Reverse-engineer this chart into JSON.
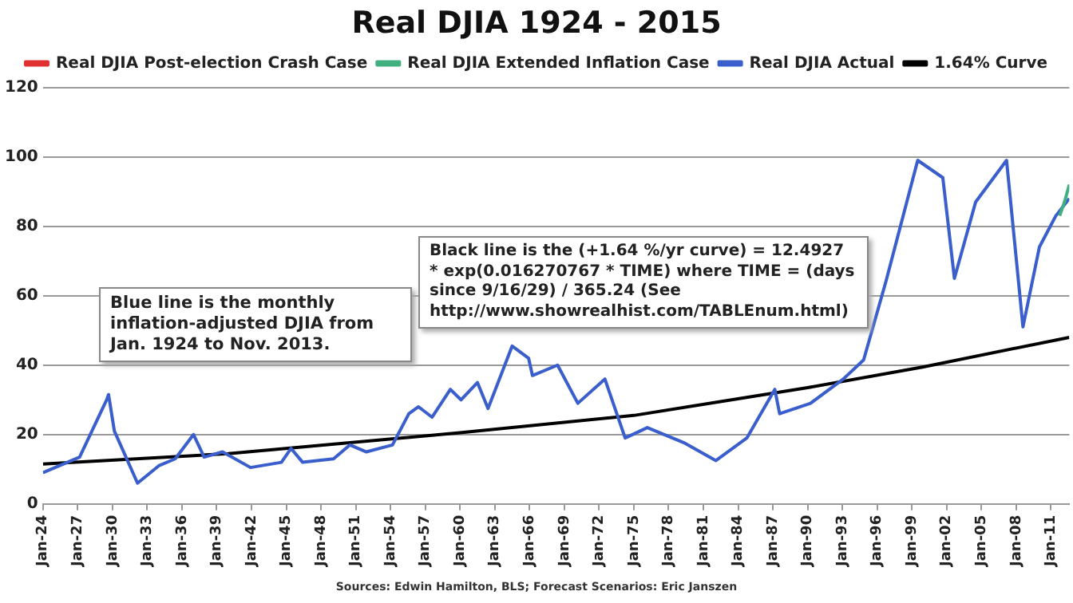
{
  "chart_data": {
    "type": "line",
    "title": "Real DJIA 1924 - 2015",
    "series": [
      {
        "name": "Real DJIA Post-election Crash Case",
        "color": "#e03030"
      },
      {
        "name": "Real DJIA Extended Inflation Case",
        "color": "#40b080",
        "x": [
          "2011-10",
          "2012-03",
          "2012-08"
        ],
        "values": [
          83,
          87,
          92
        ]
      },
      {
        "name": "Real DJIA Actual",
        "color": "#3a5fcd",
        "x": [
          "1924-01",
          "1927-03",
          "1929-07",
          "1929-09",
          "1930-03",
          "1932-03",
          "1934-01",
          "1935-06",
          "1937-01",
          "1937-12",
          "1939-07",
          "1941-12",
          "1944-08",
          "1945-06",
          "1946-06",
          "1949-02",
          "1950-07",
          "1951-12",
          "1954-03",
          "1955-08",
          "1956-06",
          "1957-08",
          "1959-03",
          "1960-02",
          "1961-07",
          "1962-06",
          "1964-07",
          "1965-12",
          "1966-04",
          "1968-06",
          "1970-03",
          "1972-07",
          "1974-04",
          "1976-03",
          "1979-06",
          "1982-02",
          "1984-10",
          "1987-03",
          "1987-08",
          "1990-04",
          "1993-02",
          "1994-11",
          "1996-10",
          "1999-07",
          "2001-09",
          "2002-09",
          "2004-07",
          "2007-03",
          "2008-08",
          "2010-01",
          "2011-06",
          "2012-08"
        ],
        "values": [
          9,
          13.5,
          30,
          31.5,
          21,
          6,
          11,
          13,
          20,
          13.5,
          15,
          10.5,
          12,
          16,
          12,
          13,
          17,
          15,
          17,
          26,
          28,
          25,
          33,
          30,
          35,
          27.5,
          45.5,
          42,
          37,
          40,
          29,
          36,
          19,
          22,
          17.5,
          12.5,
          19,
          33,
          26,
          29,
          36,
          41.5,
          64,
          99,
          94,
          65,
          87,
          99,
          51,
          74,
          83,
          88
        ]
      },
      {
        "name": "1.64% Curve",
        "color": "#000000",
        "x": [
          "1924-01",
          "1940-01",
          "1960-01",
          "1975-01",
          "1990-01",
          "2000-01",
          "2012-08"
        ],
        "values": [
          11.5,
          14.5,
          20.5,
          25.5,
          33.5,
          39.5,
          48
        ]
      }
    ],
    "xlim": [
      "1924-01",
      "2012-08"
    ],
    "xticks": [
      {
        "value": "1924-01",
        "label": "Jan-24"
      },
      {
        "value": "1927-01",
        "label": "Jan-27"
      },
      {
        "value": "1930-01",
        "label": "Jan-30"
      },
      {
        "value": "1933-01",
        "label": "Jan-33"
      },
      {
        "value": "1936-01",
        "label": "Jan-36"
      },
      {
        "value": "1939-01",
        "label": "Jan-39"
      },
      {
        "value": "1942-01",
        "label": "Jan-42"
      },
      {
        "value": "1945-01",
        "label": "Jan-45"
      },
      {
        "value": "1948-01",
        "label": "Jan-48"
      },
      {
        "value": "1951-01",
        "label": "Jan-51"
      },
      {
        "value": "1954-01",
        "label": "Jan-54"
      },
      {
        "value": "1957-01",
        "label": "Jan-57"
      },
      {
        "value": "1960-01",
        "label": "Jan-60"
      },
      {
        "value": "1963-01",
        "label": "Jan-63"
      },
      {
        "value": "1966-01",
        "label": "Jan-66"
      },
      {
        "value": "1969-01",
        "label": "Jan-69"
      },
      {
        "value": "1972-01",
        "label": "Jan-72"
      },
      {
        "value": "1975-01",
        "label": "Jan-75"
      },
      {
        "value": "1978-01",
        "label": "Jan-78"
      },
      {
        "value": "1981-01",
        "label": "Jan-81"
      },
      {
        "value": "1984-01",
        "label": "Jan-84"
      },
      {
        "value": "1987-01",
        "label": "Jan-87"
      },
      {
        "value": "1990-01",
        "label": "Jan-90"
      },
      {
        "value": "1993-01",
        "label": "Jan-93"
      },
      {
        "value": "1996-01",
        "label": "Jan-96"
      },
      {
        "value": "1999-01",
        "label": "Jan-99"
      },
      {
        "value": "2002-01",
        "label": "Jan-02"
      },
      {
        "value": "2005-01",
        "label": "Jan-05"
      },
      {
        "value": "2008-01",
        "label": "Jan-08"
      },
      {
        "value": "2011-01",
        "label": "Jan-11"
      }
    ],
    "ylim": [
      0,
      120
    ],
    "yticks": [
      0,
      20,
      40,
      60,
      80,
      100,
      120
    ],
    "grid": "y",
    "legend": "top",
    "marker": "none",
    "line_style": "solid",
    "annotations": [
      "Blue line is the monthly inflation-adjusted DJIA from Jan. 1924 to Nov. 2013.",
      "Black line is the (+1.64 %/yr curve) = 12.4927 * exp(0.016270767 * TIME) where TIME = (days since 9/16/29) / 365.24 (See http://www.showrealhist.com/TABLEnum.html)",
      "Sources: Edwin Hamilton, BLS; Forecast Scenarios: Eric Janszen"
    ]
  }
}
